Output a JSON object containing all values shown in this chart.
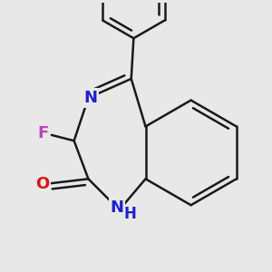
{
  "background_color": "#e8e8e8",
  "bond_color": "#1a1a1a",
  "bond_width": 1.8,
  "N_color": "#2020cc",
  "O_color": "#dd1111",
  "F_color": "#bb44bb",
  "font_size": 13,
  "fig_width": 3.0,
  "fig_height": 3.0,
  "xlim": [
    -0.5,
    4.5
  ],
  "ylim": [
    -0.8,
    4.8
  ],
  "dbo": 0.12
}
